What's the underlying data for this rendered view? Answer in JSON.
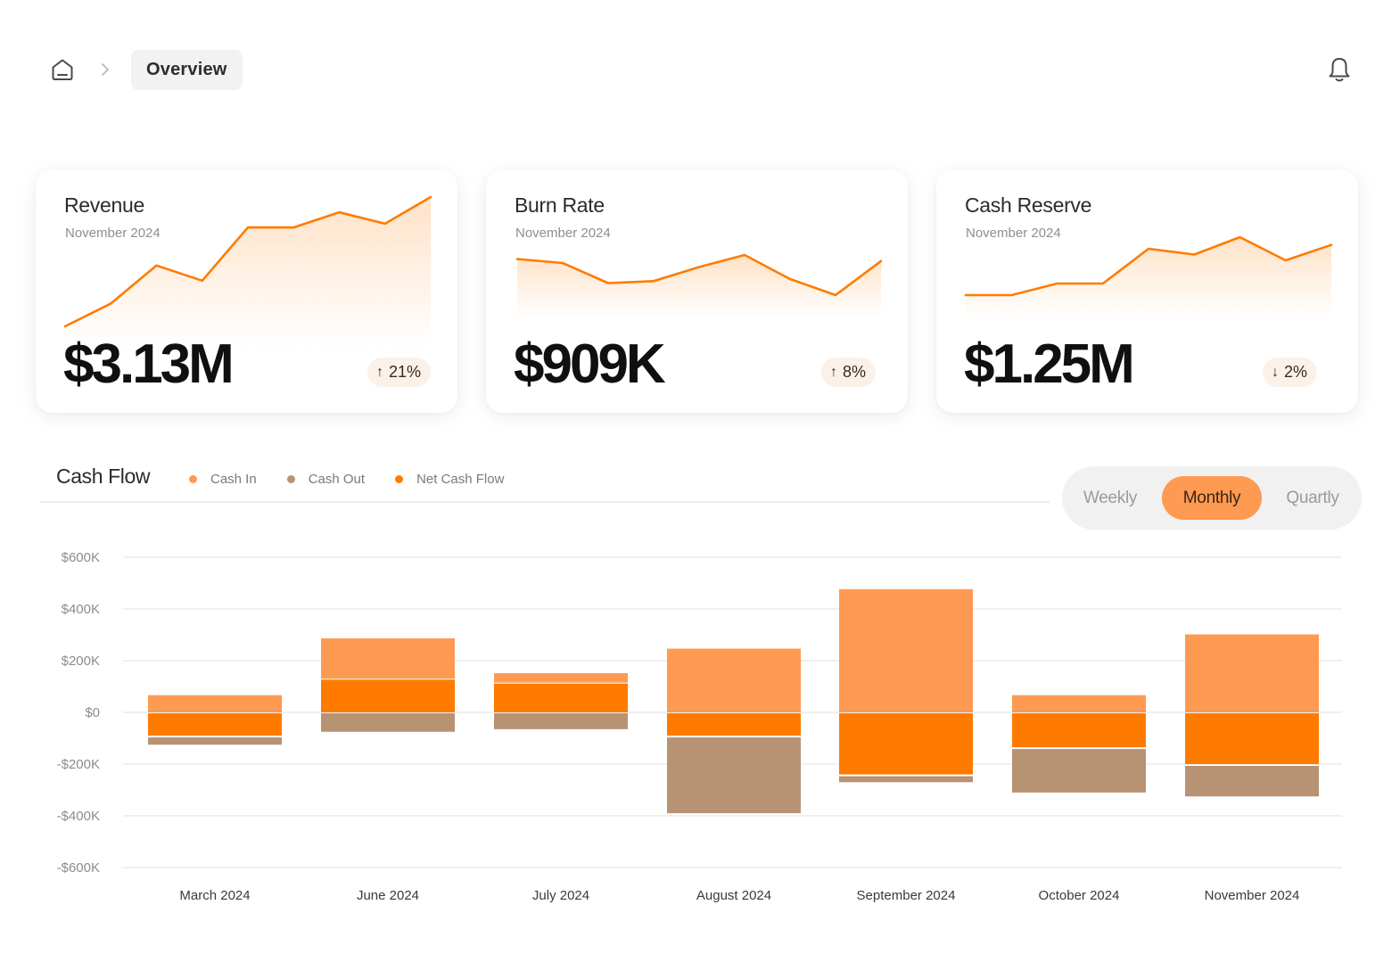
{
  "breadcrumb": {
    "home_icon": "home-icon",
    "separator_icon": "chevron-right-icon",
    "current": "Overview"
  },
  "header": {
    "notification_icon": "bell-icon"
  },
  "cards": [
    {
      "title": "Revenue",
      "subtitle": "November 2024",
      "value": "$3.13M",
      "change": "21%",
      "direction": "up",
      "trend": [
        1.0,
        1.6,
        2.6,
        2.2,
        3.6,
        3.6,
        4.0,
        3.7,
        4.4
      ]
    },
    {
      "title": "Burn Rate",
      "subtitle": "November 2024",
      "value": "$909K",
      "change": "8%",
      "direction": "up",
      "trend": [
        3.8,
        3.7,
        3.2,
        3.25,
        3.6,
        3.9,
        3.3,
        2.9,
        3.75
      ]
    },
    {
      "title": "Cash Reserve",
      "subtitle": "November 2024",
      "value": "$1.25M",
      "change": "2%",
      "direction": "down",
      "trend": [
        2.0,
        2.0,
        2.3,
        2.3,
        3.2,
        3.05,
        3.5,
        2.9,
        3.3
      ]
    }
  ],
  "cash_flow": {
    "title": "Cash Flow",
    "legend": [
      {
        "label": "Cash In",
        "color": "#ff9a52"
      },
      {
        "label": "Cash Out",
        "color": "#b79273"
      },
      {
        "label": "Net Cash Flow",
        "color": "#ff7b00"
      }
    ],
    "periods": [
      "Weekly",
      "Monthly",
      "Quartly"
    ],
    "active_period": "Monthly"
  },
  "chart_data": {
    "type": "bar",
    "title": "Cash Flow",
    "categories": [
      "March 2024",
      "June 2024",
      "July 2024",
      "August 2024",
      "September 2024",
      "October 2024",
      "November 2024"
    ],
    "series": [
      {
        "name": "Cash In",
        "values": [
          70,
          290,
          155,
          250,
          480,
          70,
          305
        ]
      },
      {
        "name": "Net Cash Flow",
        "values": [
          -90,
          130,
          115,
          -90,
          -240,
          -135,
          -200
        ]
      },
      {
        "name": "Cash Out",
        "values": [
          -35,
          -75,
          -65,
          -300,
          -30,
          -175,
          -125
        ]
      }
    ],
    "ylim": [
      -600,
      600
    ],
    "yticks": [
      600,
      400,
      200,
      0,
      -200,
      -400,
      -600
    ],
    "ytick_labels": [
      "$600K",
      "$400K",
      "$200K",
      "$0",
      "-$200K",
      "-$400K",
      "-$600K"
    ],
    "xlabel": "",
    "ylabel": "",
    "grid": true
  }
}
